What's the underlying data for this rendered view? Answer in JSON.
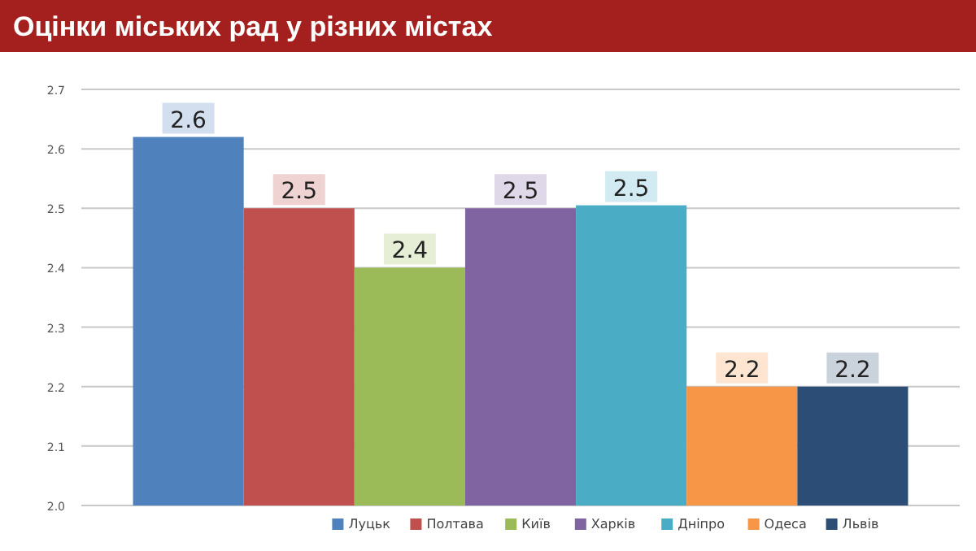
{
  "chart_data": {
    "type": "bar",
    "title": "Оцінки міських рад у різних містах",
    "categories": [
      null
    ],
    "series": [
      {
        "name": "Луцьк",
        "color": "#4f81bd",
        "values": [
          2.62
        ],
        "value_labels": [
          "2.6"
        ]
      },
      {
        "name": "Полтава",
        "color": "#c0504d",
        "values": [
          2.5
        ],
        "value_labels": [
          "2.5"
        ]
      },
      {
        "name": "Київ",
        "color": "#9bbb59",
        "values": [
          2.4
        ],
        "value_labels": [
          "2.4"
        ]
      },
      {
        "name": "Харків",
        "color": "#8064a2",
        "values": [
          2.5
        ],
        "value_labels": [
          "2.5"
        ]
      },
      {
        "name": "Дніпро",
        "color": "#4bacc6",
        "values": [
          2.505
        ],
        "value_labels": [
          "2.5"
        ]
      },
      {
        "name": "Одеса",
        "color": "#f79646",
        "values": [
          2.2
        ],
        "value_labels": [
          "2.2"
        ]
      },
      {
        "name": "Львів",
        "color": "#2c4d75",
        "values": [
          2.2
        ],
        "value_labels": [
          "2.2"
        ]
      }
    ],
    "ylim": [
      2.0,
      2.7
    ],
    "yticks": [
      {
        "value": 2.0,
        "label": "2.0"
      },
      2.1,
      2.2,
      2.3,
      2.4,
      2.5,
      2.6,
      2.7
    ],
    "grid": "y",
    "legend": "bottom"
  }
}
